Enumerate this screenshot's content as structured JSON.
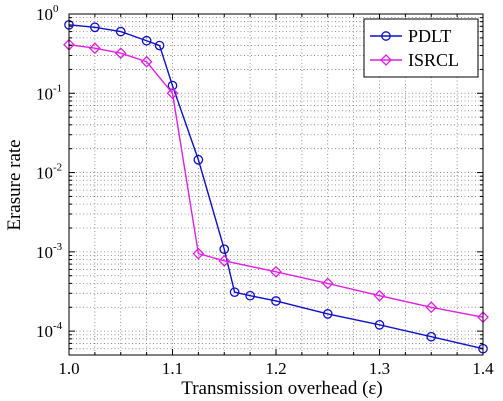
{
  "chart_data": {
    "type": "line",
    "title": "",
    "xlabel": "Transmission overhead (ε)",
    "ylabel": "Erasure rate",
    "xlim": [
      1.0,
      1.4
    ],
    "ylim": [
      5e-05,
      1
    ],
    "yscale": "log",
    "grid": true,
    "legend_position": "top-right",
    "x_ticks": [
      1.0,
      1.1,
      1.2,
      1.3,
      1.4
    ],
    "x_tick_labels": [
      "1.0",
      "1.1",
      "1.2",
      "1.3",
      "1.4"
    ],
    "y_ticks": [
      {
        "exp": -4,
        "label": "10",
        "sup": "-4"
      },
      {
        "exp": -3,
        "label": "10",
        "sup": "-3"
      },
      {
        "exp": -2,
        "label": "10",
        "sup": "-2"
      },
      {
        "exp": -1,
        "label": "10",
        "sup": "-1"
      },
      {
        "exp": 0,
        "label": "10",
        "sup": "0"
      }
    ],
    "series": [
      {
        "name": "PDLT",
        "color": "#1010c8",
        "marker": "circle",
        "x": [
          1.0,
          1.025,
          1.05,
          1.075,
          1.0875,
          1.1,
          1.125,
          1.15,
          1.16,
          1.175,
          1.2,
          1.25,
          1.3,
          1.35,
          1.4
        ],
        "y": [
          0.73,
          0.68,
          0.6,
          0.46,
          0.4,
          0.125,
          0.0145,
          0.00108,
          0.00031,
          0.00028,
          0.00024,
          0.000165,
          0.00012,
          8.5e-05,
          6e-05
        ]
      },
      {
        "name": "ISRCL",
        "color": "#e020e0",
        "marker": "diamond",
        "x": [
          1.0,
          1.025,
          1.05,
          1.075,
          1.1,
          1.125,
          1.15,
          1.2,
          1.25,
          1.3,
          1.35,
          1.4
        ],
        "y": [
          0.41,
          0.37,
          0.32,
          0.25,
          0.1,
          0.00095,
          0.00077,
          0.00056,
          0.0004,
          0.00028,
          0.0002,
          0.00015
        ]
      }
    ]
  }
}
